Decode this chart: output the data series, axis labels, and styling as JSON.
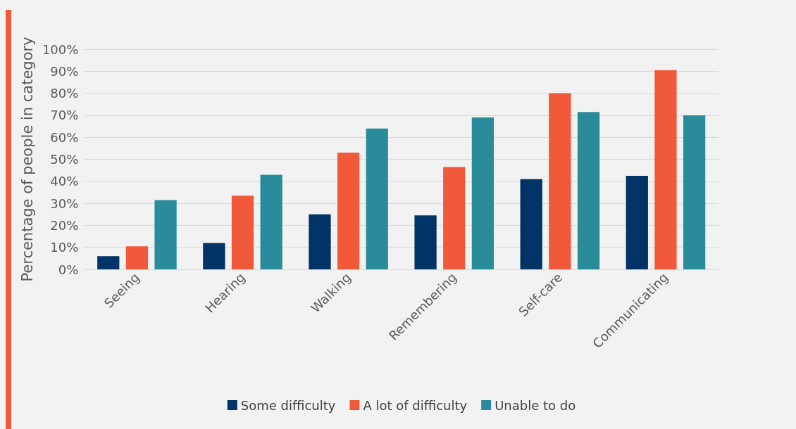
{
  "chart_data": {
    "type": "bar",
    "ylabel": "Percentage of people in category",
    "categories": [
      "Seeing",
      "Hearing",
      "Walking",
      "Remembering",
      "Self-care",
      "Communicating"
    ],
    "series": [
      {
        "name": "Some difficulty",
        "color": "#003366",
        "values": [
          6,
          12,
          25,
          24.5,
          41,
          42.5
        ]
      },
      {
        "name": "A lot of difficulty",
        "color": "#f05a3a",
        "values": [
          10.5,
          33.5,
          53,
          46.5,
          80,
          90.5
        ]
      },
      {
        "name": "Unable to do",
        "color": "#2a8c9a",
        "values": [
          31.5,
          43,
          64,
          69,
          71.5,
          70
        ]
      }
    ],
    "ylim": [
      0,
      100
    ],
    "yticks": [
      {
        "value": 0,
        "label": "0%"
      },
      {
        "value": 10,
        "label": "10%"
      },
      {
        "value": 20,
        "label": "20%"
      },
      {
        "value": 30,
        "label": "30%"
      },
      {
        "value": 40,
        "label": "40%"
      },
      {
        "value": 50,
        "label": "50%"
      },
      {
        "value": 60,
        "label": "60%"
      },
      {
        "value": 70,
        "label": "70%"
      },
      {
        "value": 80,
        "label": "80%"
      },
      {
        "value": 90,
        "label": "90%"
      },
      {
        "value": 100,
        "label": "100%"
      }
    ],
    "grid": "y",
    "legend": "bottom"
  }
}
